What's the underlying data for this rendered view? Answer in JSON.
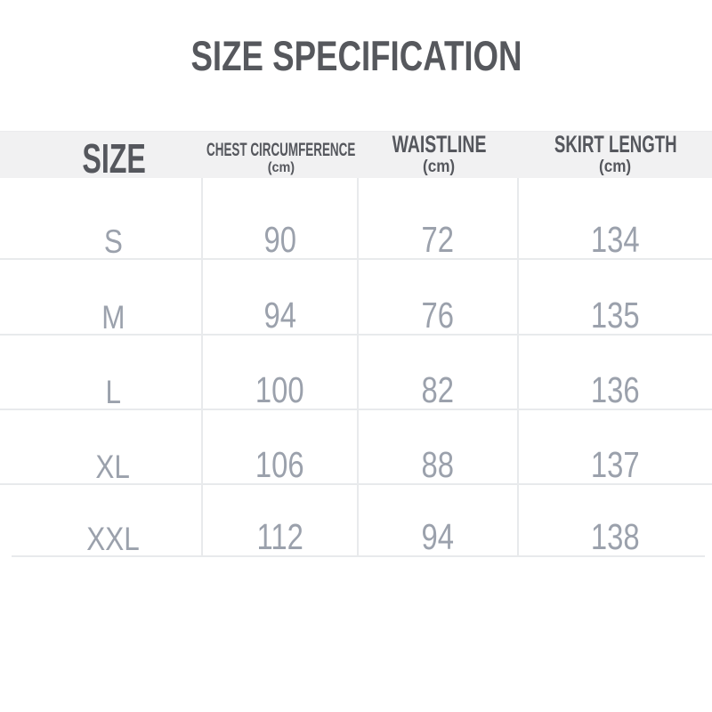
{
  "title": "SIZE SPECIFICATION",
  "table": {
    "columns": [
      {
        "label": "SIZE",
        "unit": ""
      },
      {
        "label": "CHEST CIRCUMFERENCE",
        "unit": "(cm)"
      },
      {
        "label": "WAISTLINE",
        "unit": "(cm)"
      },
      {
        "label": "SKIRT LENGTH",
        "unit": "(cm)"
      }
    ],
    "rows": [
      {
        "size": "S",
        "values": [
          "90",
          "72",
          "134"
        ]
      },
      {
        "size": "M",
        "values": [
          "94",
          "76",
          "135"
        ]
      },
      {
        "size": "L",
        "values": [
          "100",
          "82",
          "136"
        ]
      },
      {
        "size": "XL",
        "values": [
          "106",
          "88",
          "137"
        ]
      },
      {
        "size": "XXL",
        "values": [
          "112",
          "94",
          "138"
        ]
      }
    ]
  },
  "chart_data": {
    "type": "table",
    "title": "SIZE SPECIFICATION",
    "columns": [
      "SIZE",
      "CHEST CIRCUMFERENCE (cm)",
      "WAISTLINE (cm)",
      "SKIRT LENGTH (cm)"
    ],
    "rows": [
      [
        "S",
        90,
        72,
        134
      ],
      [
        "M",
        94,
        76,
        135
      ],
      [
        "L",
        100,
        82,
        136
      ],
      [
        "XL",
        106,
        88,
        137
      ],
      [
        "XXL",
        112,
        94,
        138
      ]
    ]
  },
  "colors": {
    "background": "#ffffff",
    "header_background": "#f1f1f2",
    "heading_text": "#56585d",
    "value_text": "#9ba1ac",
    "gridline": "#e8eaec"
  }
}
